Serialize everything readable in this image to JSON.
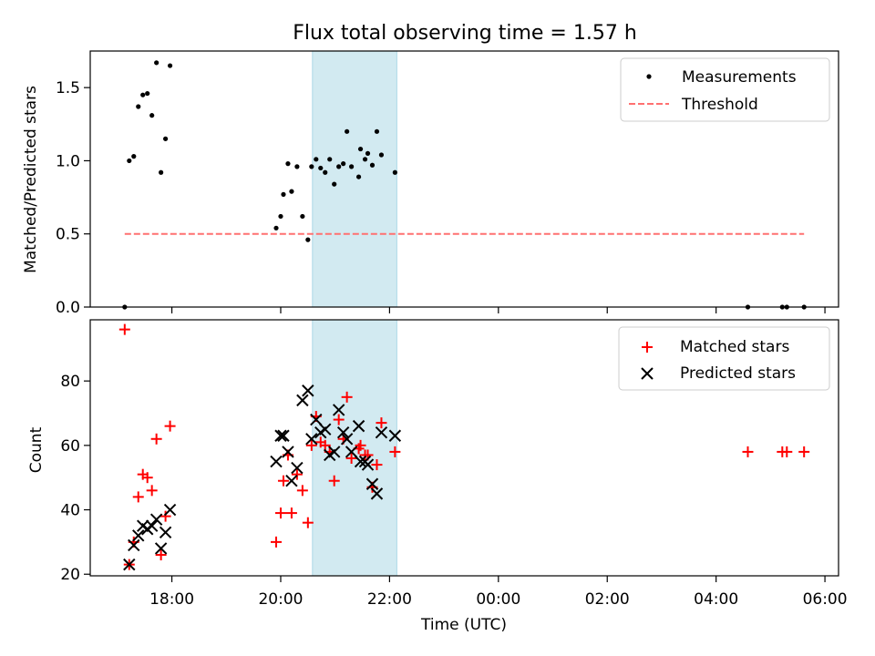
{
  "chart_data": [
    {
      "type": "scatter",
      "title": "Flux total observing time = 1.57 h",
      "xlabel": "",
      "ylabel": "Matched/Predicted stars",
      "xlim": [
        "2024-01-01T16:30",
        "2024-01-02T06:15"
      ],
      "ylim": [
        0,
        1.75
      ],
      "y_ticks": [
        "0.0",
        "0.5",
        "1.0",
        "1.5"
      ],
      "shaded_region": {
        "start": "2024-01-01T20:35",
        "end": "2024-01-01T22:08",
        "color": "#add8e6"
      },
      "legend": {
        "placement": "top-right",
        "entries": [
          "Measurements",
          "Threshold"
        ]
      },
      "series": [
        {
          "name": "Measurements",
          "marker": "dot",
          "color": "#000000",
          "points": [
            [
              "2024-01-01T17:08",
              0.0
            ],
            [
              "2024-01-01T17:13",
              1.0
            ],
            [
              "2024-01-01T17:18",
              1.03
            ],
            [
              "2024-01-01T17:23",
              1.37
            ],
            [
              "2024-01-01T17:28",
              1.45
            ],
            [
              "2024-01-01T17:33",
              1.46
            ],
            [
              "2024-01-01T17:38",
              1.31
            ],
            [
              "2024-01-01T17:43",
              1.67
            ],
            [
              "2024-01-01T17:48",
              0.92
            ],
            [
              "2024-01-01T17:53",
              1.15
            ],
            [
              "2024-01-01T17:58",
              1.65
            ],
            [
              "2024-01-01T19:55",
              0.54
            ],
            [
              "2024-01-01T20:00",
              0.62
            ],
            [
              "2024-01-01T20:03",
              0.77
            ],
            [
              "2024-01-01T20:08",
              0.98
            ],
            [
              "2024-01-01T20:12",
              0.79
            ],
            [
              "2024-01-01T20:18",
              0.96
            ],
            [
              "2024-01-01T20:24",
              0.62
            ],
            [
              "2024-01-01T20:30",
              0.46
            ],
            [
              "2024-01-01T20:34",
              0.96
            ],
            [
              "2024-01-01T20:39",
              1.01
            ],
            [
              "2024-01-01T20:44",
              0.95
            ],
            [
              "2024-01-01T20:49",
              0.92
            ],
            [
              "2024-01-01T20:54",
              1.01
            ],
            [
              "2024-01-01T20:59",
              0.84
            ],
            [
              "2024-01-01T21:04",
              0.96
            ],
            [
              "2024-01-01T21:09",
              0.98
            ],
            [
              "2024-01-01T21:13",
              1.2
            ],
            [
              "2024-01-01T21:18",
              0.96
            ],
            [
              "2024-01-01T21:26",
              0.89
            ],
            [
              "2024-01-01T21:28",
              1.08
            ],
            [
              "2024-01-01T21:33",
              1.01
            ],
            [
              "2024-01-01T21:36",
              1.05
            ],
            [
              "2024-01-01T21:41",
              0.97
            ],
            [
              "2024-01-01T21:46",
              1.2
            ],
            [
              "2024-01-01T21:51",
              1.04
            ],
            [
              "2024-01-01T22:06",
              0.92
            ],
            [
              "2024-01-02T04:35",
              0.0
            ],
            [
              "2024-01-02T05:13",
              0.0
            ],
            [
              "2024-01-02T05:18",
              0.0
            ],
            [
              "2024-01-02T05:37",
              0.0
            ]
          ]
        },
        {
          "name": "Threshold",
          "style": "dashed",
          "color": "#ff7070",
          "points": [
            [
              "2024-01-01T17:08",
              0.5
            ],
            [
              "2024-01-02T05:37",
              0.5
            ]
          ]
        }
      ]
    },
    {
      "type": "scatter",
      "title": "",
      "xlabel": "Time (UTC)",
      "ylabel": "Count",
      "xlim": [
        "2024-01-01T16:30",
        "2024-01-02T06:15"
      ],
      "ylim": [
        19.5,
        99
      ],
      "y_ticks": [
        "20",
        "40",
        "60",
        "80"
      ],
      "x_ticks": [
        "18:00",
        "20:00",
        "22:00",
        "00:00",
        "02:00",
        "04:00",
        "06:00"
      ],
      "shaded_region": {
        "start": "2024-01-01T20:35",
        "end": "2024-01-01T22:08",
        "color": "#add8e6"
      },
      "legend": {
        "placement": "top-right",
        "entries": [
          "Matched stars",
          "Predicted stars"
        ]
      },
      "series": [
        {
          "name": "Matched stars",
          "marker": "plus",
          "color": "#ff0000",
          "points": [
            [
              "2024-01-01T17:08",
              96
            ],
            [
              "2024-01-01T17:13",
              23
            ],
            [
              "2024-01-01T17:18",
              30
            ],
            [
              "2024-01-01T17:23",
              44
            ],
            [
              "2024-01-01T17:28",
              51
            ],
            [
              "2024-01-01T17:33",
              50
            ],
            [
              "2024-01-01T17:38",
              46
            ],
            [
              "2024-01-01T17:43",
              62
            ],
            [
              "2024-01-01T17:48",
              26
            ],
            [
              "2024-01-01T17:53",
              38
            ],
            [
              "2024-01-01T17:58",
              66
            ],
            [
              "2024-01-01T19:55",
              30
            ],
            [
              "2024-01-01T20:00",
              39
            ],
            [
              "2024-01-01T20:03",
              49
            ],
            [
              "2024-01-01T20:08",
              57
            ],
            [
              "2024-01-01T20:12",
              39
            ],
            [
              "2024-01-01T20:18",
              51
            ],
            [
              "2024-01-01T20:24",
              46
            ],
            [
              "2024-01-01T20:30",
              36
            ],
            [
              "2024-01-01T20:34",
              60
            ],
            [
              "2024-01-01T20:39",
              69
            ],
            [
              "2024-01-01T20:44",
              61
            ],
            [
              "2024-01-01T20:49",
              60
            ],
            [
              "2024-01-01T20:54",
              58
            ],
            [
              "2024-01-01T20:59",
              49
            ],
            [
              "2024-01-01T21:04",
              68
            ],
            [
              "2024-01-01T21:09",
              62
            ],
            [
              "2024-01-01T21:13",
              75
            ],
            [
              "2024-01-01T21:18",
              56
            ],
            [
              "2024-01-01T21:26",
              59
            ],
            [
              "2024-01-01T21:28",
              60
            ],
            [
              "2024-01-01T21:33",
              57
            ],
            [
              "2024-01-01T21:36",
              57
            ],
            [
              "2024-01-01T21:41",
              47
            ],
            [
              "2024-01-01T21:46",
              54
            ],
            [
              "2024-01-01T21:51",
              67
            ],
            [
              "2024-01-01T22:06",
              58
            ],
            [
              "2024-01-02T04:35",
              58
            ],
            [
              "2024-01-02T05:13",
              58
            ],
            [
              "2024-01-02T05:18",
              58
            ],
            [
              "2024-01-02T05:37",
              58
            ]
          ]
        },
        {
          "name": "Predicted stars",
          "marker": "x",
          "color": "#000000",
          "points": [
            [
              "2024-01-01T17:13",
              23
            ],
            [
              "2024-01-01T17:18",
              29
            ],
            [
              "2024-01-01T17:23",
              32
            ],
            [
              "2024-01-01T17:28",
              35
            ],
            [
              "2024-01-01T17:33",
              34
            ],
            [
              "2024-01-01T17:38",
              35
            ],
            [
              "2024-01-01T17:43",
              37
            ],
            [
              "2024-01-01T17:48",
              28
            ],
            [
              "2024-01-01T17:53",
              33
            ],
            [
              "2024-01-01T17:58",
              40
            ],
            [
              "2024-01-01T19:55",
              55
            ],
            [
              "2024-01-01T20:00",
              63
            ],
            [
              "2024-01-01T20:03",
              63
            ],
            [
              "2024-01-01T20:08",
              58
            ],
            [
              "2024-01-01T20:12",
              49
            ],
            [
              "2024-01-01T20:18",
              53
            ],
            [
              "2024-01-01T20:24",
              74
            ],
            [
              "2024-01-01T20:30",
              77
            ],
            [
              "2024-01-01T20:34",
              62
            ],
            [
              "2024-01-01T20:39",
              68
            ],
            [
              "2024-01-01T20:44",
              64
            ],
            [
              "2024-01-01T20:49",
              65
            ],
            [
              "2024-01-01T20:54",
              57
            ],
            [
              "2024-01-01T20:59",
              58
            ],
            [
              "2024-01-01T21:04",
              71
            ],
            [
              "2024-01-01T21:09",
              64
            ],
            [
              "2024-01-01T21:13",
              62
            ],
            [
              "2024-01-01T21:18",
              58
            ],
            [
              "2024-01-01T21:26",
              66
            ],
            [
              "2024-01-01T21:28",
              55
            ],
            [
              "2024-01-01T21:33",
              55
            ],
            [
              "2024-01-01T21:36",
              54
            ],
            [
              "2024-01-01T21:41",
              48
            ],
            [
              "2024-01-01T21:46",
              45
            ],
            [
              "2024-01-01T21:51",
              64
            ],
            [
              "2024-01-01T22:06",
              63
            ]
          ]
        }
      ]
    }
  ]
}
